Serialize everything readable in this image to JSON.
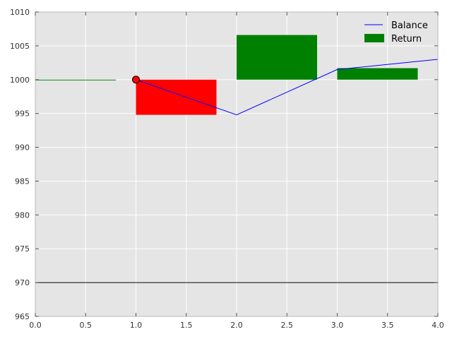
{
  "chart_data": {
    "type": "bar",
    "title": "",
    "xlabel": "",
    "ylabel": "",
    "xlim": [
      0.0,
      4.0
    ],
    "ylim": [
      965,
      1010
    ],
    "grid": true,
    "background": "#e5e5e5",
    "xticks": [
      0.0,
      0.5,
      1.0,
      1.5,
      2.0,
      2.5,
      3.0,
      3.5,
      4.0
    ],
    "xtick_labels": [
      "0.0",
      "0.5",
      "1.0",
      "1.5",
      "2.0",
      "2.5",
      "3.0",
      "3.5",
      "4.0"
    ],
    "yticks": [
      965,
      970,
      975,
      980,
      985,
      990,
      995,
      1000,
      1005,
      1010
    ],
    "ytick_labels": [
      "965",
      "970",
      "975",
      "980",
      "985",
      "990",
      "995",
      "1000",
      "1005",
      "1010"
    ],
    "balance": {
      "name": "Balance",
      "color": "#0000ff",
      "x": [
        1.0,
        2.0,
        3.0,
        4.0
      ],
      "y": [
        1000.0,
        994.8,
        1001.5,
        1003.0
      ]
    },
    "returns": {
      "name": "Return",
      "legend_color": "#008000",
      "width": 0.8,
      "bars": [
        {
          "x": 0.0,
          "y0": 1000.0,
          "y1": 1000.0,
          "color": "#008000"
        },
        {
          "x": 1.0,
          "y0": 994.8,
          "y1": 1000.0,
          "color": "#ff0000"
        },
        {
          "x": 2.0,
          "y0": 1000.0,
          "y1": 1006.6,
          "color": "#008000"
        },
        {
          "x": 3.0,
          "y0": 1000.0,
          "y1": 1001.7,
          "color": "#008000"
        }
      ]
    },
    "start_marker": {
      "x": 1.0,
      "y": 1000.0,
      "color": "#ff0000"
    },
    "reference_line": {
      "y": 970,
      "color": "#000000"
    },
    "legend": {
      "position": "top-right"
    }
  }
}
